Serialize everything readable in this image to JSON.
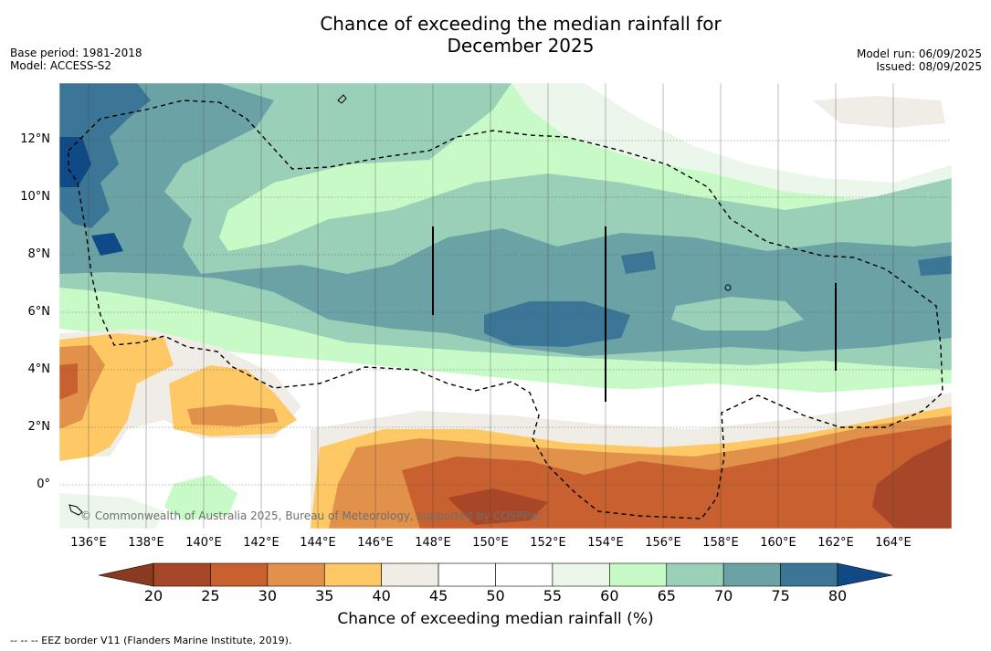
{
  "header": {
    "title_line1": "Chance of exceeding the median rainfall for",
    "title_line2": "December 2025",
    "base_period": "Base period: 1981-2018",
    "model": "Model: ACCESS-S2",
    "model_run": "Model run: 06/09/2025",
    "issued": "Issued: 08/09/2025"
  },
  "map": {
    "lat_labels": [
      "12°N",
      "10°N",
      "8°N",
      "6°N",
      "4°N",
      "2°N",
      "0°"
    ],
    "lon_labels": [
      "136°E",
      "138°E",
      "140°E",
      "142°E",
      "144°E",
      "146°E",
      "148°E",
      "150°E",
      "152°E",
      "154°E",
      "156°E",
      "158°E",
      "160°E",
      "162°E",
      "164°E"
    ],
    "copyright": "© Commonwealth of Australia 2025, Bureau of Meteorology, supported by COSPPac"
  },
  "colorbar": {
    "label": "Chance of exceeding median rainfall (%)",
    "ticks": [
      "20",
      "25",
      "30",
      "35",
      "40",
      "45",
      "50",
      "55",
      "60",
      "65",
      "70",
      "75",
      "80"
    ],
    "colors": [
      "#a84727",
      "#c8602f",
      "#e1914a",
      "#fec964",
      "#f0ece6",
      "#ffffff",
      "#ffffff",
      "#ebf7ea",
      "#c8fac8",
      "#9acfb8",
      "#6aa2a6",
      "#3c7696"
    ],
    "under_color": "#8b3a22",
    "over_color": "#0f4a86"
  },
  "footnote": "--  --  -- EEZ border V11 (Flanders Marine Institute, 2019)."
}
